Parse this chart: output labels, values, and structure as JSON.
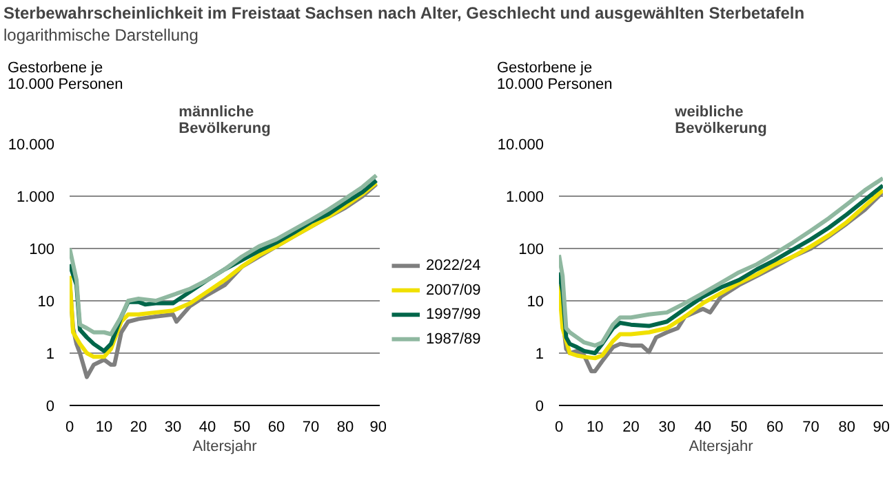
{
  "chart_data": [
    {
      "type": "other",
      "title": "Sterbewahrscheinlichkeit im Freistaat Sachsen nach Alter, Geschlecht und ausgewählten Sterbetafeln",
      "subtitle": "logarithmische Darstellung"
    },
    {
      "type": "line",
      "title": "männliche\nBevölkerung",
      "xlabel": "Altersjahr",
      "ylabel": "Gestorbene je\n10.000 Personen",
      "log": "y",
      "grid": "y",
      "legend": "right",
      "line_style": "solid",
      "marker": "none",
      "xlim": [
        0,
        90
      ],
      "xticks": [
        0,
        10,
        20,
        30,
        40,
        50,
        60,
        70,
        80,
        90
      ],
      "ylim": [
        0.1,
        10000
      ],
      "yticks": [
        {
          "value": 0.1,
          "label": "0"
        },
        1,
        10,
        100,
        {
          "value": 1000,
          "label": "1.000"
        },
        {
          "value": 10000,
          "label": "10.000"
        }
      ],
      "series": [
        {
          "name": "2022/24",
          "color": "#7f7f7f",
          "x": [
            0,
            1,
            2,
            3,
            5,
            7,
            10,
            12,
            13,
            15,
            17,
            20,
            25,
            30,
            31,
            35,
            40,
            45,
            50,
            55,
            60,
            65,
            70,
            75,
            80,
            85,
            89
          ],
          "values": [
            25,
            3,
            1.5,
            1.0,
            0.35,
            0.6,
            0.75,
            0.6,
            0.6,
            2.5,
            4,
            4.5,
            5,
            5.5,
            4,
            8,
            13,
            20,
            45,
            70,
            110,
            170,
            260,
            400,
            600,
            1000,
            1700
          ]
        },
        {
          "name": "2007/09",
          "color": "#f0e000",
          "x": [
            0,
            1,
            3,
            5,
            7,
            10,
            12,
            15,
            17,
            20,
            25,
            30,
            35,
            40,
            45,
            50,
            55,
            60,
            65,
            70,
            75,
            80,
            85,
            89
          ],
          "values": [
            30,
            2.5,
            1.5,
            1.0,
            0.85,
            0.85,
            1.2,
            4,
            5.5,
            5.5,
            6,
            6.5,
            9,
            15,
            25,
            45,
            75,
            110,
            170,
            260,
            400,
            650,
            1100,
            1800
          ]
        },
        {
          "name": "1997/99",
          "color": "#00664a",
          "x": [
            0,
            2,
            3,
            5,
            7,
            10,
            12,
            15,
            17,
            20,
            22,
            25,
            30,
            35,
            40,
            45,
            50,
            55,
            60,
            65,
            70,
            75,
            80,
            85,
            89
          ],
          "values": [
            50,
            20,
            2.8,
            2.0,
            1.5,
            1.1,
            1.5,
            5,
            9.5,
            9.5,
            8.5,
            9,
            9,
            15,
            25,
            40,
            60,
            90,
            130,
            200,
            320,
            450,
            750,
            1200,
            2000
          ]
        },
        {
          "name": "1987/89",
          "color": "#8fb8a0",
          "x": [
            0,
            2,
            3,
            5,
            7,
            10,
            12,
            15,
            17,
            20,
            25,
            30,
            35,
            40,
            45,
            50,
            55,
            60,
            65,
            70,
            75,
            80,
            85,
            89
          ],
          "values": [
            100,
            25,
            3.5,
            3.0,
            2.5,
            2.5,
            2.3,
            5,
            10,
            11,
            10,
            13,
            17,
            25,
            40,
            70,
            110,
            150,
            230,
            350,
            550,
            900,
            1500,
            2500
          ]
        }
      ]
    },
    {
      "type": "line",
      "title": "weibliche\nBevölkerung",
      "xlabel": "Altersjahr",
      "ylabel": "Gestorbene je\n10.000 Personen",
      "log": "y",
      "grid": "y",
      "line_style": "solid",
      "marker": "none",
      "xlim": [
        0,
        90
      ],
      "xticks": [
        0,
        10,
        20,
        30,
        40,
        50,
        60,
        70,
        80,
        90
      ],
      "ylim": [
        0.1,
        10000
      ],
      "yticks": [
        {
          "value": 0.1,
          "label": "0"
        },
        1,
        10,
        100,
        {
          "value": 1000,
          "label": "1.000"
        },
        {
          "value": 10000,
          "label": "10.000"
        }
      ],
      "series": [
        {
          "color": "#7f7f7f",
          "x": [
            0,
            1,
            2,
            3,
            5,
            7,
            9,
            10,
            12,
            15,
            17,
            20,
            23,
            25,
            27,
            30,
            33,
            35,
            40,
            42,
            45,
            50,
            55,
            60,
            65,
            70,
            75,
            80,
            85,
            90
          ],
          "values": [
            20,
            5,
            1.2,
            1.0,
            1.1,
            0.9,
            0.45,
            0.45,
            0.7,
            1.3,
            1.5,
            1.4,
            1.4,
            1.05,
            2,
            2.5,
            3,
            5,
            7,
            6,
            12,
            20,
            30,
            45,
            70,
            100,
            170,
            300,
            550,
            1200
          ]
        },
        {
          "color": "#f0e000",
          "x": [
            0,
            1,
            3,
            5,
            7,
            10,
            12,
            15,
            17,
            20,
            25,
            30,
            35,
            40,
            45,
            50,
            55,
            60,
            65,
            70,
            75,
            80,
            85,
            90
          ],
          "values": [
            20,
            3,
            1.0,
            0.9,
            0.85,
            0.8,
            0.9,
            1.7,
            2.3,
            2.3,
            2.5,
            3.0,
            5,
            9,
            14,
            22,
            32,
            50,
            70,
            110,
            180,
            320,
            650,
            1300
          ]
        },
        {
          "color": "#00664a",
          "x": [
            0,
            1,
            2,
            3,
            5,
            7,
            10,
            12,
            15,
            17,
            20,
            25,
            30,
            35,
            40,
            45,
            50,
            55,
            60,
            65,
            70,
            75,
            80,
            85,
            90
          ],
          "values": [
            35,
            15,
            2,
            1.5,
            1.3,
            1.1,
            1.0,
            1.5,
            3,
            3.8,
            3.5,
            3.3,
            4,
            7,
            12,
            18,
            25,
            40,
            60,
            95,
            150,
            250,
            450,
            850,
            1600
          ]
        },
        {
          "color": "#8fb8a0",
          "x": [
            0,
            1,
            2,
            3,
            5,
            7,
            10,
            12,
            15,
            17,
            20,
            25,
            30,
            35,
            40,
            45,
            50,
            55,
            60,
            65,
            70,
            75,
            80,
            85,
            90
          ],
          "values": [
            75,
            30,
            3,
            2.5,
            2,
            1.6,
            1.4,
            1.6,
            3.5,
            4.8,
            4.8,
            5.5,
            6,
            9,
            14,
            22,
            35,
            50,
            80,
            130,
            220,
            380,
            700,
            1300,
            2200
          ]
        }
      ]
    }
  ]
}
